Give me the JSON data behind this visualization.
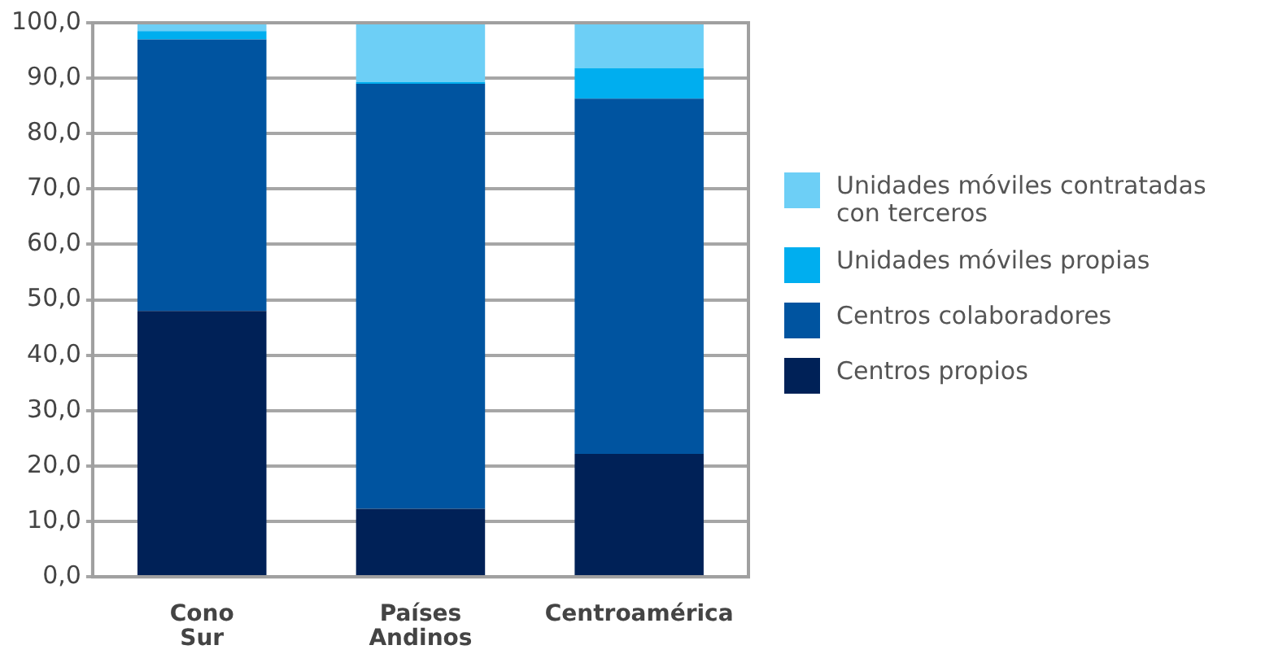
{
  "chart_data": {
    "type": "bar",
    "stacked": true,
    "categories": [
      "Cono Sur",
      "Países Andinos",
      "Centroamérica"
    ],
    "series": [
      {
        "name": "Centros propios",
        "color": "#002157",
        "values": [
          48.0,
          12.3,
          22.2
        ]
      },
      {
        "name": "Centros colaboradores",
        "color": "#0054a0",
        "values": [
          49.0,
          76.7,
          64.1
        ]
      },
      {
        "name": "Unidades móviles propias",
        "color": "#00aeef",
        "values": [
          1.5,
          0.3,
          5.5
        ]
      },
      {
        "name": "Unidades móviles contratadas con terceros",
        "color": "#6dcff6",
        "values": [
          1.5,
          10.7,
          8.2
        ]
      }
    ],
    "ylim": [
      0,
      100
    ],
    "yticks": [
      {
        "value": 0,
        "label": "0,0"
      },
      {
        "value": 10,
        "label": "10,0"
      },
      {
        "value": 20,
        "label": "20,0"
      },
      {
        "value": 30,
        "label": "30,0"
      },
      {
        "value": 40,
        "label": "40,0"
      },
      {
        "value": 50,
        "label": "50,0"
      },
      {
        "value": 60,
        "label": "60,0"
      },
      {
        "value": 70,
        "label": "70,0"
      },
      {
        "value": 80,
        "label": "80,0"
      },
      {
        "value": 90,
        "label": "90,0"
      },
      {
        "value": 100,
        "label": "100,0"
      }
    ],
    "grid": "y",
    "legend": "right"
  }
}
